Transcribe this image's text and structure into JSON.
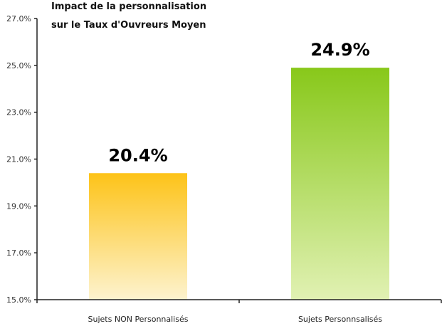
{
  "chart_data": {
    "type": "bar",
    "title": [
      "Impact de la personnalisation",
      "sur le Taux d'Ouvreurs Moyen"
    ],
    "categories": [
      "Sujets NON Personnalisés",
      "Sujets Personnsalisés"
    ],
    "values": [
      20.4,
      24.9
    ],
    "data_labels": [
      "20.4%",
      "24.9%"
    ],
    "ylim": [
      15,
      27
    ],
    "yticks": [
      15,
      17,
      19,
      21,
      23,
      25,
      27
    ],
    "ytick_labels": [
      "15.0%",
      "17.0%",
      "19.0%",
      "21.0%",
      "23.0%",
      "25.0%",
      "27.0%"
    ],
    "xlabel": "",
    "ylabel": "",
    "grid": false,
    "colors": [
      {
        "top": "#fdc318",
        "bottom": "#fdf3cf"
      },
      {
        "top": "#88c81a",
        "bottom": "#e1f1b3"
      }
    ]
  }
}
